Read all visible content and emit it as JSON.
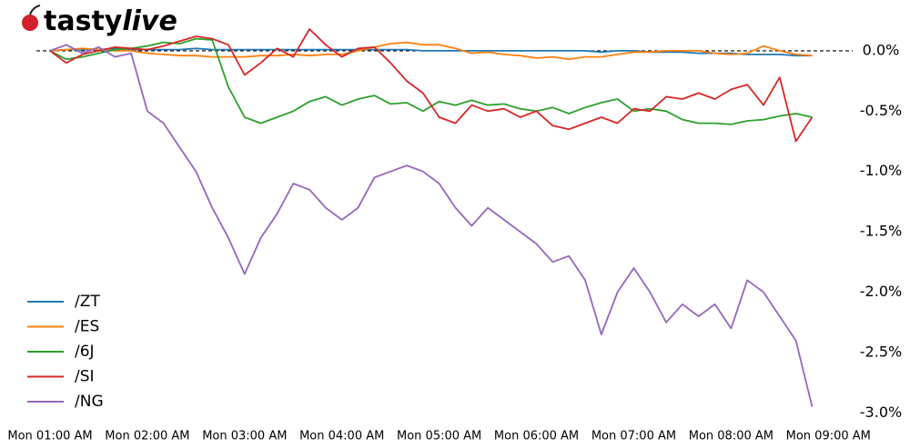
{
  "chart_data": {
    "type": "line",
    "brand": {
      "main": "tasty",
      "accent": "live"
    },
    "x": [
      "Mon 01:00 AM",
      "Mon 01:10 AM",
      "Mon 01:20 AM",
      "Mon 01:30 AM",
      "Mon 01:40 AM",
      "Mon 01:50 AM",
      "Mon 02:00 AM",
      "Mon 02:10 AM",
      "Mon 02:20 AM",
      "Mon 02:30 AM",
      "Mon 02:40 AM",
      "Mon 02:50 AM",
      "Mon 03:00 AM",
      "Mon 03:10 AM",
      "Mon 03:20 AM",
      "Mon 03:30 AM",
      "Mon 03:40 AM",
      "Mon 03:50 AM",
      "Mon 04:00 AM",
      "Mon 04:10 AM",
      "Mon 04:20 AM",
      "Mon 04:30 AM",
      "Mon 04:40 AM",
      "Mon 04:50 AM",
      "Mon 05:00 AM",
      "Mon 05:10 AM",
      "Mon 05:20 AM",
      "Mon 05:30 AM",
      "Mon 05:40 AM",
      "Mon 05:50 AM",
      "Mon 06:00 AM",
      "Mon 06:10 AM",
      "Mon 06:20 AM",
      "Mon 06:30 AM",
      "Mon 06:40 AM",
      "Mon 06:50 AM",
      "Mon 07:00 AM",
      "Mon 07:10 AM",
      "Mon 07:20 AM",
      "Mon 07:30 AM",
      "Mon 07:40 AM",
      "Mon 07:50 AM",
      "Mon 08:00 AM",
      "Mon 08:10 AM",
      "Mon 08:20 AM",
      "Mon 08:30 AM",
      "Mon 08:40 AM",
      "Mon 08:50 AM"
    ],
    "series": [
      {
        "name": "/ZT",
        "color": "#1f77b4",
        "values": [
          0,
          0.01,
          0.01,
          0.01,
          0.02,
          0.01,
          0.01,
          0.01,
          0.01,
          0.02,
          0.01,
          0.01,
          0.01,
          0.01,
          0.01,
          0.01,
          0.01,
          0.01,
          0.01,
          0.01,
          0.01,
          0.01,
          0.01,
          0,
          0,
          0,
          0,
          0,
          0,
          0,
          0,
          0,
          0,
          0,
          -0.01,
          0,
          0,
          -0.01,
          -0.01,
          -0.01,
          -0.02,
          -0.02,
          -0.02,
          -0.03,
          -0.03,
          -0.03,
          -0.04,
          -0.04
        ]
      },
      {
        "name": "/ES",
        "color": "#ff7f0e",
        "values": [
          0,
          0.01,
          0.02,
          0.01,
          0,
          0,
          -0.02,
          -0.03,
          -0.04,
          -0.04,
          -0.05,
          -0.05,
          -0.05,
          -0.04,
          -0.04,
          -0.03,
          -0.04,
          -0.03,
          -0.03,
          0,
          0.03,
          0.06,
          0.07,
          0.05,
          0.05,
          0.02,
          -0.02,
          -0.01,
          -0.03,
          -0.04,
          -0.06,
          -0.05,
          -0.07,
          -0.05,
          -0.05,
          -0.03,
          -0.01,
          -0.01,
          0,
          0,
          0,
          -0.02,
          -0.03,
          -0.02,
          0.04,
          0,
          -0.03,
          -0.04
        ]
      },
      {
        "name": "/6J",
        "color": "#2ca02c",
        "values": [
          0,
          -0.07,
          -0.05,
          -0.02,
          0.01,
          0.02,
          0.04,
          0.07,
          0.06,
          0.1,
          0.09,
          -0.3,
          -0.55,
          -0.6,
          -0.55,
          -0.5,
          -0.42,
          -0.38,
          -0.45,
          -0.4,
          -0.37,
          -0.44,
          -0.43,
          -0.5,
          -0.42,
          -0.45,
          -0.41,
          -0.45,
          -0.44,
          -0.48,
          -0.5,
          -0.47,
          -0.52,
          -0.47,
          -0.43,
          -0.4,
          -0.5,
          -0.48,
          -0.5,
          -0.57,
          -0.6,
          -0.6,
          -0.61,
          -0.58,
          -0.57,
          -0.54,
          -0.52,
          -0.55
        ]
      },
      {
        "name": "/SI",
        "color": "#d62728",
        "values": [
          0,
          -0.1,
          -0.03,
          0,
          0.03,
          0.02,
          0.01,
          0.04,
          0.08,
          0.12,
          0.1,
          0.05,
          -0.2,
          -0.1,
          0.02,
          -0.05,
          0.18,
          0.05,
          -0.05,
          0.02,
          0.03,
          -0.1,
          -0.25,
          -0.35,
          -0.55,
          -0.6,
          -0.45,
          -0.5,
          -0.48,
          -0.55,
          -0.5,
          -0.62,
          -0.65,
          -0.6,
          -0.55,
          -0.6,
          -0.48,
          -0.5,
          -0.38,
          -0.4,
          -0.35,
          -0.4,
          -0.32,
          -0.28,
          -0.45,
          -0.22,
          -0.75,
          -0.55
        ]
      },
      {
        "name": "/NG",
        "color": "#9467bd",
        "values": [
          0,
          0.05,
          -0.02,
          0.03,
          -0.05,
          -0.02,
          -0.5,
          -0.6,
          -0.8,
          -1.0,
          -1.3,
          -1.55,
          -1.85,
          -1.55,
          -1.35,
          -1.1,
          -1.15,
          -1.3,
          -1.4,
          -1.3,
          -1.05,
          -1.0,
          -0.95,
          -1.0,
          -1.1,
          -1.3,
          -1.45,
          -1.3,
          -1.4,
          -1.5,
          -1.6,
          -1.75,
          -1.7,
          -1.9,
          -2.35,
          -2.0,
          -1.8,
          -2.0,
          -2.25,
          -2.1,
          -2.2,
          -2.1,
          -2.3,
          -1.9,
          -2.0,
          -2.2,
          -2.4,
          -2.95
        ]
      }
    ],
    "xlim": [
      "Mon 01:00 AM",
      "Mon 09:15 AM"
    ],
    "xticks": [
      "Mon 01:00 AM",
      "Mon 02:00 AM",
      "Mon 03:00 AM",
      "Mon 04:00 AM",
      "Mon 05:00 AM",
      "Mon 06:00 AM",
      "Mon 07:00 AM",
      "Mon 08:00 AM",
      "Mon 09:00 AM"
    ],
    "ylim": [
      -3.05,
      0.15
    ],
    "yticks": [
      {
        "value": 0,
        "label": "0.0%"
      },
      {
        "value": -0.5,
        "label": "-0.5%"
      },
      {
        "value": -1,
        "label": "-1.0%"
      },
      {
        "value": -1.5,
        "label": "-1.5%"
      },
      {
        "value": -2,
        "label": "-2.0%"
      },
      {
        "value": -2.5,
        "label": "-2.5%"
      },
      {
        "value": -3,
        "label": "-3.0%"
      }
    ],
    "reference_line": 0,
    "legend": "lower left"
  }
}
